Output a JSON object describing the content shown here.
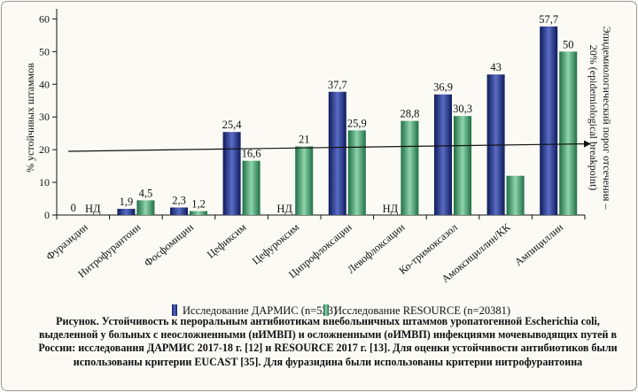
{
  "chart_data": {
    "type": "bar",
    "ylabel": "% устойчивых штаммов",
    "right_label": "Эпидемиологический порог отсечения – 20% (epidemiological breakpoint)",
    "ylim": [
      0,
      62
    ],
    "yticks": [
      0,
      10,
      20,
      30,
      40,
      50,
      60
    ],
    "categories": [
      "Фуразидин",
      "Нитрофурантоин",
      "Фосфомицин",
      "Цефиксим",
      "Цефуроксим",
      "Ципрофлоксацин",
      "Левофлоксацин",
      "Ко-тримоксазол",
      "Амоксициллин/КК",
      "Ампициллин"
    ],
    "series": [
      {
        "name": "Исследование ДАРМИС (n=523)",
        "color": "#2b3a87",
        "values": [
          0,
          1.9,
          2.3,
          25.4,
          null,
          37.7,
          null,
          36.9,
          43,
          57.7
        ],
        "labels": [
          "0",
          "1,9",
          "2,3",
          "25,4",
          "НД",
          "37,7",
          "НД",
          "36,9",
          "43",
          "57,7"
        ]
      },
      {
        "name": "Исследование RESOURCE (n=20381)",
        "color": "#3e9a6a",
        "values": [
          null,
          4.5,
          1.2,
          16.6,
          21,
          25.9,
          28.8,
          30.3,
          12,
          50
        ],
        "labels": [
          "НД",
          "4,5",
          "1,2",
          "16,6",
          "21",
          "25,9",
          "28,8",
          "30,3",
          "",
          "50"
        ]
      }
    ],
    "threshold_line": {
      "y_start": 19.5,
      "y_end": 21.8
    },
    "legend_position": "bottom",
    "grid": false
  },
  "caption": "Рисунок. Устойчивость к пероральным антибиотикам внебольничных штаммов уропатогенной Escherichia coli, выделенной у больных с неосложненными (нИМВП) и осложненными (оИМВП) инфекциями мочевыводящих путей в России: исследования ДАРМИС 2017-18 г. [12] и RESOURCE 2017 г. [13]. Для оценки устойчивости антибиотиков были использованы критерии EUCAST [35]. Для фуразидина были использованы критерии нитрофурантоина"
}
